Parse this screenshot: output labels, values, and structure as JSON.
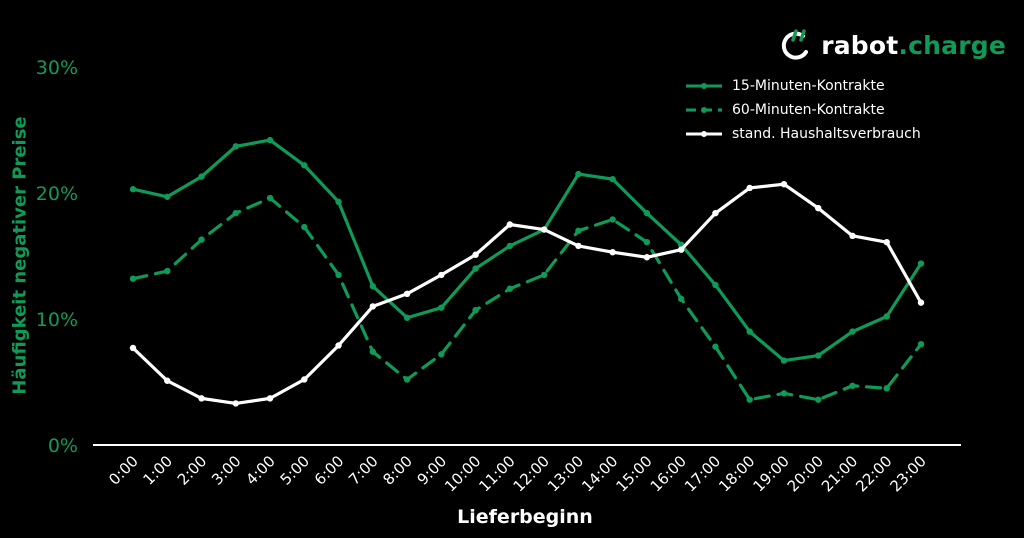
{
  "brand": {
    "name_main": "rabot",
    "name_accent": ".charge",
    "accent_color": "#0f9a57",
    "icon": "plug-c-icon"
  },
  "chart_data": {
    "type": "line",
    "xlabel": "Lieferbeginn",
    "ylabel": "Häufigkeit negativer Preise",
    "categories": [
      "0:00",
      "1:00",
      "2:00",
      "3:00",
      "4:00",
      "5:00",
      "6:00",
      "7:00",
      "8:00",
      "9:00",
      "10:00",
      "11:00",
      "12:00",
      "13:00",
      "14:00",
      "15:00",
      "16:00",
      "17:00",
      "18:00",
      "19:00",
      "20:00",
      "21:00",
      "22:00",
      "23:00"
    ],
    "ylim": [
      0,
      30
    ],
    "yticks": [
      "0%",
      "10%",
      "20%",
      "30%"
    ],
    "ytick_values": [
      0,
      10,
      20,
      30
    ],
    "grid": false,
    "legend_position": "top-right",
    "series": [
      {
        "name": "15-Minuten-Kontrakte",
        "color": "#0f9a57",
        "dash": "solid",
        "values": [
          20.3,
          19.7,
          21.3,
          23.7,
          24.2,
          22.2,
          19.3,
          12.6,
          10.1,
          10.9,
          14.0,
          15.8,
          17.1,
          21.5,
          21.1,
          18.4,
          15.9,
          12.7,
          9.0,
          6.7,
          7.1,
          9.0,
          10.2,
          14.4
        ]
      },
      {
        "name": "60-Minuten-Kontrakte",
        "color": "#0f9a57",
        "dash": "dashed",
        "values": [
          13.2,
          13.8,
          16.3,
          18.4,
          19.6,
          17.3,
          13.5,
          7.4,
          5.2,
          7.2,
          10.7,
          12.4,
          13.5,
          17.0,
          17.9,
          16.1,
          11.6,
          7.8,
          3.6,
          4.1,
          3.6,
          4.7,
          4.5,
          8.0
        ]
      },
      {
        "name": "stand. Haushaltsverbrauch",
        "color": "#ffffff",
        "dash": "solid",
        "values": [
          7.7,
          5.1,
          3.7,
          3.3,
          3.7,
          5.2,
          7.9,
          11.0,
          12.0,
          13.5,
          15.1,
          17.5,
          17.1,
          15.8,
          15.3,
          14.9,
          15.5,
          18.4,
          20.4,
          20.7,
          18.8,
          16.6,
          16.1,
          11.3
        ]
      }
    ]
  }
}
